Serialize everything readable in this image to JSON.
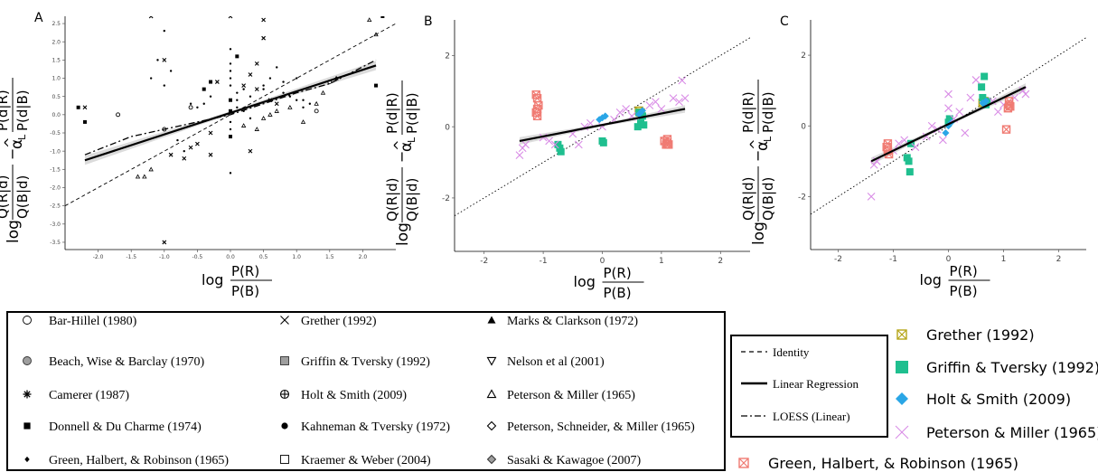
{
  "y_math": {
    "log": "log",
    "num1": "Q(R|d)",
    "den1": "Q(B|d)",
    "minus": "−",
    "alpha": "α",
    "hat": "^",
    "sub": "L",
    "num2": "P(d|R)",
    "den2": "P(d|B)"
  },
  "x_math": {
    "log": "log",
    "num": "P(R)",
    "den": "P(B)"
  },
  "colors": {
    "grether": "#b5a518",
    "griffin": "#1fbf8f",
    "holt": "#2aa6e6",
    "peterson": "#d98ce6",
    "green": "#f07b73",
    "regression": "#000000",
    "ci_band": "#bdbdbd"
  },
  "chart_data": [
    {
      "panel": "A",
      "type": "scatter",
      "xlim": [
        -2.5,
        2.5
      ],
      "ylim": [
        -3.7,
        2.7
      ],
      "xticks": [
        -2.0,
        -1.5,
        -1.0,
        -0.5,
        0.0,
        0.5,
        1.0,
        1.5,
        2.0
      ],
      "xtick_labels": [
        "-2.0",
        "-1.5",
        "-1.0",
        "-0.5",
        "0.0",
        "0.5",
        "1.0",
        "1.5",
        "2.0"
      ],
      "yticks": [
        -3.5,
        -3.0,
        -2.5,
        -2.0,
        -1.5,
        -1.0,
        -0.5,
        0.0,
        0.5,
        1.0,
        1.5,
        2.0,
        2.5
      ],
      "ytick_labels": [
        "-3.5",
        "-3.0",
        "-2.5",
        "-2.0",
        "-1.5",
        "-1.0",
        "-0.5",
        "0.0",
        "0.5",
        "1.0",
        "1.5",
        "2.0",
        "2.5"
      ],
      "grid": false,
      "identity": {
        "slope": 1,
        "intercept": 0
      },
      "regression": {
        "x": [
          -2.2,
          2.2
        ],
        "y": [
          -1.25,
          1.35
        ]
      },
      "loess": {
        "x": [
          -2.2,
          -1.5,
          -1.0,
          -0.5,
          0.0,
          0.5,
          1.0,
          1.5,
          2.2
        ],
        "y": [
          -1.1,
          -0.6,
          -0.4,
          -0.2,
          0.0,
          0.3,
          0.6,
          0.85,
          1.5
        ]
      },
      "series": [
        {
          "marker": "x",
          "x": [
            -2.2,
            -1.2,
            -1.0,
            -0.9,
            -0.6,
            -0.3,
            -0.2,
            0.0,
            0.2,
            0.3,
            0.4,
            0.5,
            0.6,
            0.7,
            0.3,
            -0.5,
            -0.7,
            0.5,
            -1.0,
            0.4,
            -0.3
          ],
          "y": [
            0.2,
            2.7,
            1.5,
            -1.1,
            -0.9,
            -1.1,
            0.9,
            2.7,
            0.8,
            1.1,
            1.4,
            2.1,
            0.4,
            0.3,
            -1.0,
            -0.8,
            -1.2,
            2.6,
            -3.5,
            0.7,
            -0.5
          ]
        },
        {
          "marker": "dot",
          "x": [
            -1.2,
            -1.1,
            -1.0,
            -1.0,
            -0.9,
            -0.8,
            -0.7,
            -0.6,
            -0.5,
            0.0,
            0.0,
            0.0,
            0.0,
            0.0,
            0.1,
            0.1,
            0.1,
            0.2,
            0.2,
            0.3,
            0.3,
            0.5,
            0.6,
            0.7,
            0.8,
            0.9,
            1.0,
            1.1,
            1.2,
            0.0,
            0.0,
            0.0,
            -0.3,
            -0.4,
            0.5,
            0.8,
            1.1,
            1.0
          ],
          "y": [
            1.0,
            1.5,
            2.3,
            0.8,
            1.2,
            -0.7,
            -1.0,
            0.3,
            0.2,
            1.8,
            1.4,
            1.2,
            1.0,
            0.8,
            0.6,
            0.4,
            0.2,
            0.7,
            0.1,
            0.5,
            -0.1,
            0.8,
            1.0,
            1.3,
            0.9,
            0.5,
            1.0,
            0.4,
            0.3,
            -0.2,
            -0.4,
            -1.6,
            0.5,
            0.3,
            0.7,
            0.6,
            0.2,
            0.4
          ]
        },
        {
          "marker": "triangle",
          "x": [
            -1.4,
            -1.3,
            -1.2,
            0.5,
            0.6,
            0.7,
            0.9,
            1.1,
            1.3,
            1.4,
            1.6,
            2.1,
            2.2,
            0.4,
            0.2
          ],
          "y": [
            -1.7,
            -1.7,
            -1.5,
            -0.1,
            0.0,
            0.1,
            0.2,
            -0.2,
            0.3,
            0.6,
            1.0,
            2.6,
            2.2,
            -0.4,
            -0.3
          ]
        },
        {
          "marker": "square",
          "x": [
            -2.2,
            -2.3,
            -0.4,
            -0.3,
            0.0,
            0.1,
            2.3,
            2.2,
            0.0,
            0.0
          ],
          "y": [
            -0.2,
            0.2,
            0.7,
            0.9,
            0.4,
            1.6,
            2.7,
            0.8,
            -0.6,
            0.1
          ]
        },
        {
          "marker": "circle",
          "x": [
            -1.7,
            1.3,
            -1.0,
            -0.6,
            1.5
          ],
          "y": [
            0.0,
            0.1,
            -0.4,
            0.2,
            0.9
          ]
        }
      ]
    },
    {
      "panel": "B",
      "type": "scatter",
      "xlim": [
        -2.5,
        2.5
      ],
      "ylim": [
        -3.5,
        3.0
      ],
      "xticks": [
        -2,
        -1,
        0,
        1,
        2
      ],
      "xtick_labels": [
        "-2",
        "-1",
        "0",
        "1",
        "2"
      ],
      "yticks": [
        -2,
        0,
        2
      ],
      "ytick_labels": [
        "-2",
        "0",
        "2"
      ],
      "grid": false,
      "identity": {
        "slope": 1,
        "intercept": 0
      },
      "regression": {
        "x": [
          -1.4,
          1.4
        ],
        "y": [
          -0.4,
          0.5
        ]
      },
      "series": [
        {
          "name": "Grether (1992)",
          "color": "#b5a518",
          "marker": "square-x",
          "x": [
            0.65,
            0.62
          ],
          "y": [
            0.4,
            0.45
          ]
        },
        {
          "name": "Griffin & Tversky (1992)",
          "color": "#1fbf8f",
          "marker": "square",
          "x": [
            -0.75,
            -0.72,
            -0.7,
            0.0,
            0.02,
            0.6,
            0.65,
            0.7,
            0.68,
            0.62
          ],
          "y": [
            -0.5,
            -0.6,
            -0.7,
            -0.4,
            -0.45,
            0.0,
            0.1,
            0.05,
            0.3,
            0.4
          ]
        },
        {
          "name": "Holt & Smith (2009)",
          "color": "#2aa6e6",
          "marker": "diamond",
          "x": [
            -0.05,
            0.0,
            0.05,
            0.65,
            0.68,
            0.62
          ],
          "y": [
            0.2,
            0.25,
            0.3,
            0.4,
            0.45,
            0.35
          ]
        },
        {
          "name": "Peterson & Miller (1965)",
          "color": "#d98ce6",
          "marker": "x",
          "x": [
            -1.4,
            -1.35,
            -1.3,
            -1.0,
            -0.9,
            -0.8,
            -0.4,
            -0.3,
            -0.2,
            0.0,
            0.2,
            0.4,
            0.5,
            0.8,
            0.9,
            1.0,
            1.2,
            1.35,
            1.4,
            1.3,
            0.3,
            -0.5
          ],
          "y": [
            -0.8,
            -0.6,
            -0.5,
            -0.3,
            -0.4,
            -0.5,
            -0.5,
            0.0,
            0.1,
            0.0,
            0.2,
            0.5,
            0.3,
            0.6,
            0.7,
            0.5,
            0.8,
            1.3,
            0.8,
            0.7,
            0.4,
            -0.2
          ]
        },
        {
          "name": "Green, Halbert, & Robinson (1965)",
          "color": "#f07b73",
          "marker": "square-x",
          "x": [
            -1.1,
            -1.12,
            -1.1,
            -1.08,
            -1.1,
            -1.12,
            1.05,
            1.08,
            1.1,
            1.1,
            1.12
          ],
          "y": [
            0.3,
            0.4,
            0.5,
            0.6,
            0.8,
            0.9,
            -0.4,
            -0.5,
            -0.45,
            -0.35,
            -0.5
          ]
        }
      ]
    },
    {
      "panel": "C",
      "type": "scatter",
      "xlim": [
        -2.5,
        2.5
      ],
      "ylim": [
        -3.5,
        3.0
      ],
      "xticks": [
        -2,
        -1,
        0,
        1,
        2
      ],
      "xtick_labels": [
        "-2",
        "-1",
        "0",
        "1",
        "2"
      ],
      "yticks": [
        -2,
        0,
        2
      ],
      "ytick_labels": [
        "-2",
        "0",
        "2"
      ],
      "grid": false,
      "identity": {
        "slope": 1,
        "intercept": 0
      },
      "regression": {
        "x": [
          -1.4,
          1.4
        ],
        "y": [
          -1.0,
          1.1
        ]
      },
      "series": [
        {
          "name": "Grether (1992)",
          "color": "#b5a518",
          "marker": "square-x",
          "x": [
            0.65,
            0.62
          ],
          "y": [
            0.7,
            0.65
          ]
        },
        {
          "name": "Griffin & Tversky (1992)",
          "color": "#1fbf8f",
          "marker": "square",
          "x": [
            -0.75,
            -0.72,
            -0.7,
            -0.68,
            0.0,
            0.02,
            0.6,
            0.65,
            0.7,
            0.68,
            0.62
          ],
          "y": [
            -0.9,
            -1.0,
            -1.3,
            -0.5,
            0.1,
            0.2,
            1.1,
            1.4,
            0.7,
            0.6,
            0.8
          ]
        },
        {
          "name": "Holt & Smith (2009)",
          "color": "#2aa6e6",
          "marker": "diamond",
          "x": [
            -0.05,
            0.0,
            0.05,
            0.65,
            0.68,
            0.62
          ],
          "y": [
            -0.2,
            0.0,
            0.1,
            0.6,
            0.7,
            0.65
          ]
        },
        {
          "name": "Peterson & Miller (1965)",
          "color": "#d98ce6",
          "marker": "x",
          "x": [
            -1.4,
            -1.35,
            -1.3,
            -1.0,
            -0.9,
            -0.8,
            -0.6,
            -0.4,
            -0.3,
            -0.2,
            0.0,
            0.0,
            0.2,
            0.3,
            0.4,
            0.5,
            0.8,
            0.9,
            1.0,
            1.2,
            1.35,
            1.4,
            -0.1,
            0.1
          ],
          "y": [
            -2.0,
            -1.1,
            -1.0,
            -0.7,
            -0.5,
            -0.4,
            -0.6,
            -0.3,
            0.0,
            -0.1,
            0.9,
            0.5,
            0.4,
            -0.2,
            0.8,
            1.3,
            0.7,
            0.4,
            0.6,
            0.8,
            1.0,
            0.9,
            -0.4,
            0.2
          ]
        },
        {
          "name": "Green, Halbert, & Robinson (1965)",
          "color": "#f07b73",
          "marker": "square-x",
          "x": [
            -1.1,
            -1.12,
            -1.1,
            -1.08,
            1.05,
            1.08,
            1.1,
            1.1,
            1.12
          ],
          "y": [
            -0.5,
            -0.6,
            -0.7,
            -0.8,
            -0.1,
            0.5,
            0.6,
            0.7,
            0.55
          ]
        }
      ]
    }
  ],
  "panel_labels": [
    "A",
    "B",
    "C"
  ],
  "legend_studies": [
    {
      "label": "Bar-Hillel (1980)",
      "marker": "circle"
    },
    {
      "label": "Beach, Wise & Barclay (1970)",
      "marker": "grey-circle"
    },
    {
      "label": "Camerer (1987)",
      "marker": "asterisk"
    },
    {
      "label": "Donnell & Du Charme (1974)",
      "marker": "filled-square"
    },
    {
      "label": "Green, Halbert, & Robinson (1965)",
      "marker": "filled-diamond-small"
    },
    {
      "label": "Grether (1992)",
      "marker": "x"
    },
    {
      "label": "Griffin & Tversky (1992)",
      "marker": "grey-square"
    },
    {
      "label": "Holt & Smith (2009)",
      "marker": "circle-plus"
    },
    {
      "label": "Kahneman & Tversky (1972)",
      "marker": "filled-circle"
    },
    {
      "label": "Kraemer & Weber (2004)",
      "marker": "open-square"
    },
    {
      "label": "Marks & Clarkson (1972)",
      "marker": "filled-triangle"
    },
    {
      "label": "Nelson et al (2001)",
      "marker": "down-triangle"
    },
    {
      "label": "Peterson & Miller (1965)",
      "marker": "open-triangle"
    },
    {
      "label": "Peterson, Schneider, & Miller (1965)",
      "marker": "open-diamond"
    },
    {
      "label": "Sasaki & Kawagoe (2007)",
      "marker": "grey-diamond"
    }
  ],
  "legend_lines": [
    {
      "label": "Identity",
      "style": "dashed"
    },
    {
      "label": "Linear Regression",
      "style": "solid"
    },
    {
      "label": "LOESS (Linear)",
      "style": "dashdot"
    }
  ],
  "legend_colored": [
    {
      "label": "Grether (1992)",
      "color": "#b5a518",
      "marker": "square-x"
    },
    {
      "label": "Griffin & Tversky (1992)",
      "color": "#1fbf8f",
      "marker": "square"
    },
    {
      "label": "Holt & Smith (2009)",
      "color": "#2aa6e6",
      "marker": "diamond"
    },
    {
      "label": "Peterson & Miller (1965)",
      "color": "#d98ce6",
      "marker": "x"
    },
    {
      "label": "Green, Halbert, & Robinson (1965)",
      "color": "#f07b73",
      "marker": "square-x"
    }
  ]
}
